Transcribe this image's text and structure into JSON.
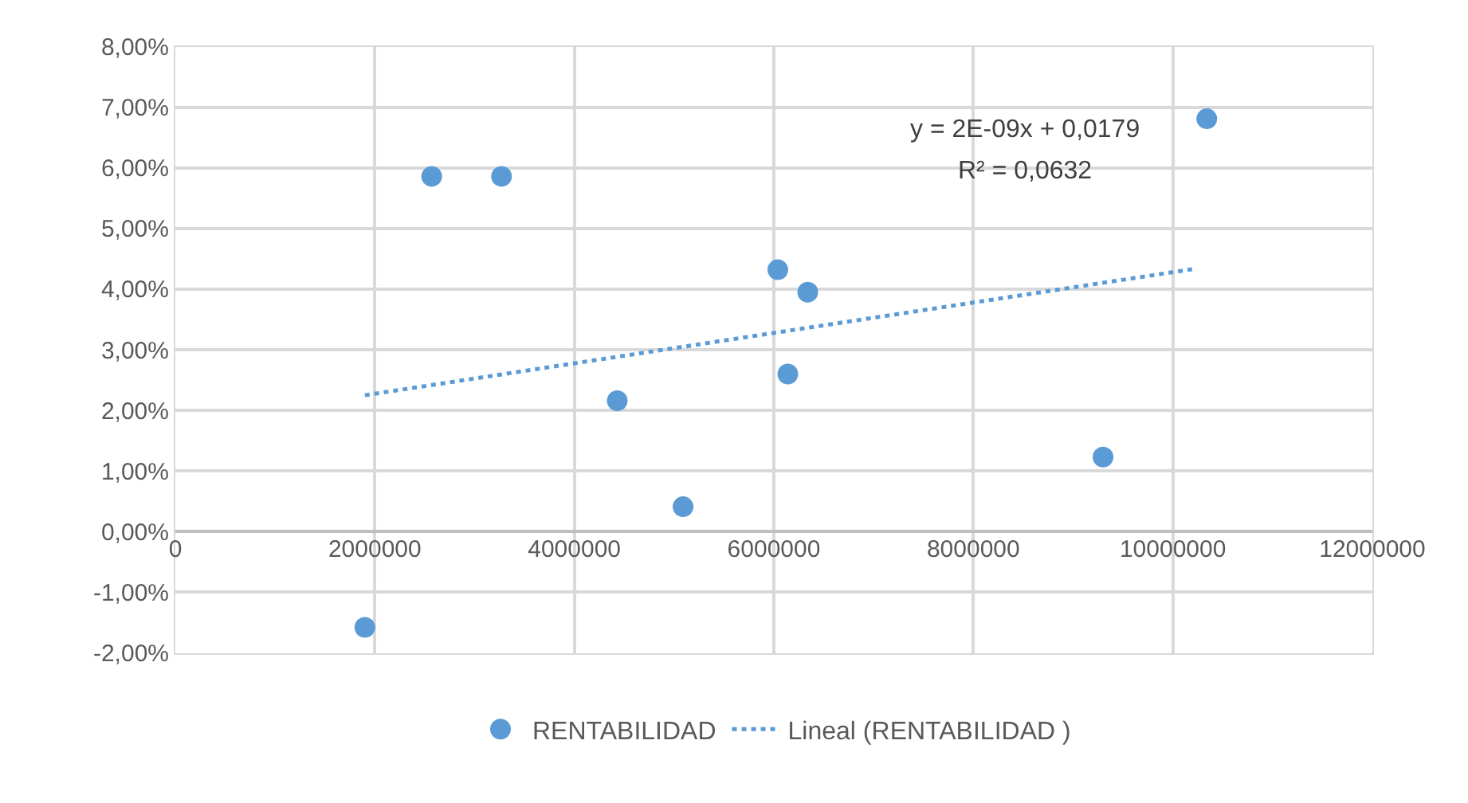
{
  "chart_data": {
    "type": "scatter",
    "xlim": [
      0,
      12000000
    ],
    "ylim": [
      -2,
      8
    ],
    "xticks": [
      0,
      2000000,
      4000000,
      6000000,
      8000000,
      10000000,
      12000000
    ],
    "yticks": [
      {
        "value": -2,
        "label": "-2,00%"
      },
      {
        "value": -1,
        "label": "-1,00%"
      },
      {
        "value": 0,
        "label": "0,00%"
      },
      {
        "value": 1,
        "label": "1,00%"
      },
      {
        "value": 2,
        "label": "2,00%"
      },
      {
        "value": 3,
        "label": "3,00%"
      },
      {
        "value": 4,
        "label": "4,00%"
      },
      {
        "value": 5,
        "label": "5,00%"
      },
      {
        "value": 6,
        "label": "6,00%"
      },
      {
        "value": 7,
        "label": "7,00%"
      },
      {
        "value": 8,
        "label": "8,00%"
      }
    ],
    "grid": true,
    "legend": "bottom",
    "annotations": [
      "y = 2E-09x + 0,0179",
      "R² = 0,0632"
    ],
    "series": [
      {
        "name": "RENTABILIDAD",
        "marker": "circle",
        "color": "#5b9bd5",
        "x": [
          1900000,
          2570000,
          3270000,
          4430000,
          5090000,
          6040000,
          6140000,
          6340000,
          9300000,
          10340000
        ],
        "values": [
          -1.58,
          5.86,
          5.86,
          2.16,
          0.41,
          4.32,
          2.6,
          3.95,
          1.23,
          6.81
        ]
      },
      {
        "name": "Lineal (RENTABILIDAD )",
        "type": "line",
        "marker": "none",
        "line_style": "dotted",
        "color": "#5b9bd5",
        "x": [
          1900000,
          10240000
        ],
        "values": [
          2.25,
          4.34
        ]
      }
    ]
  }
}
